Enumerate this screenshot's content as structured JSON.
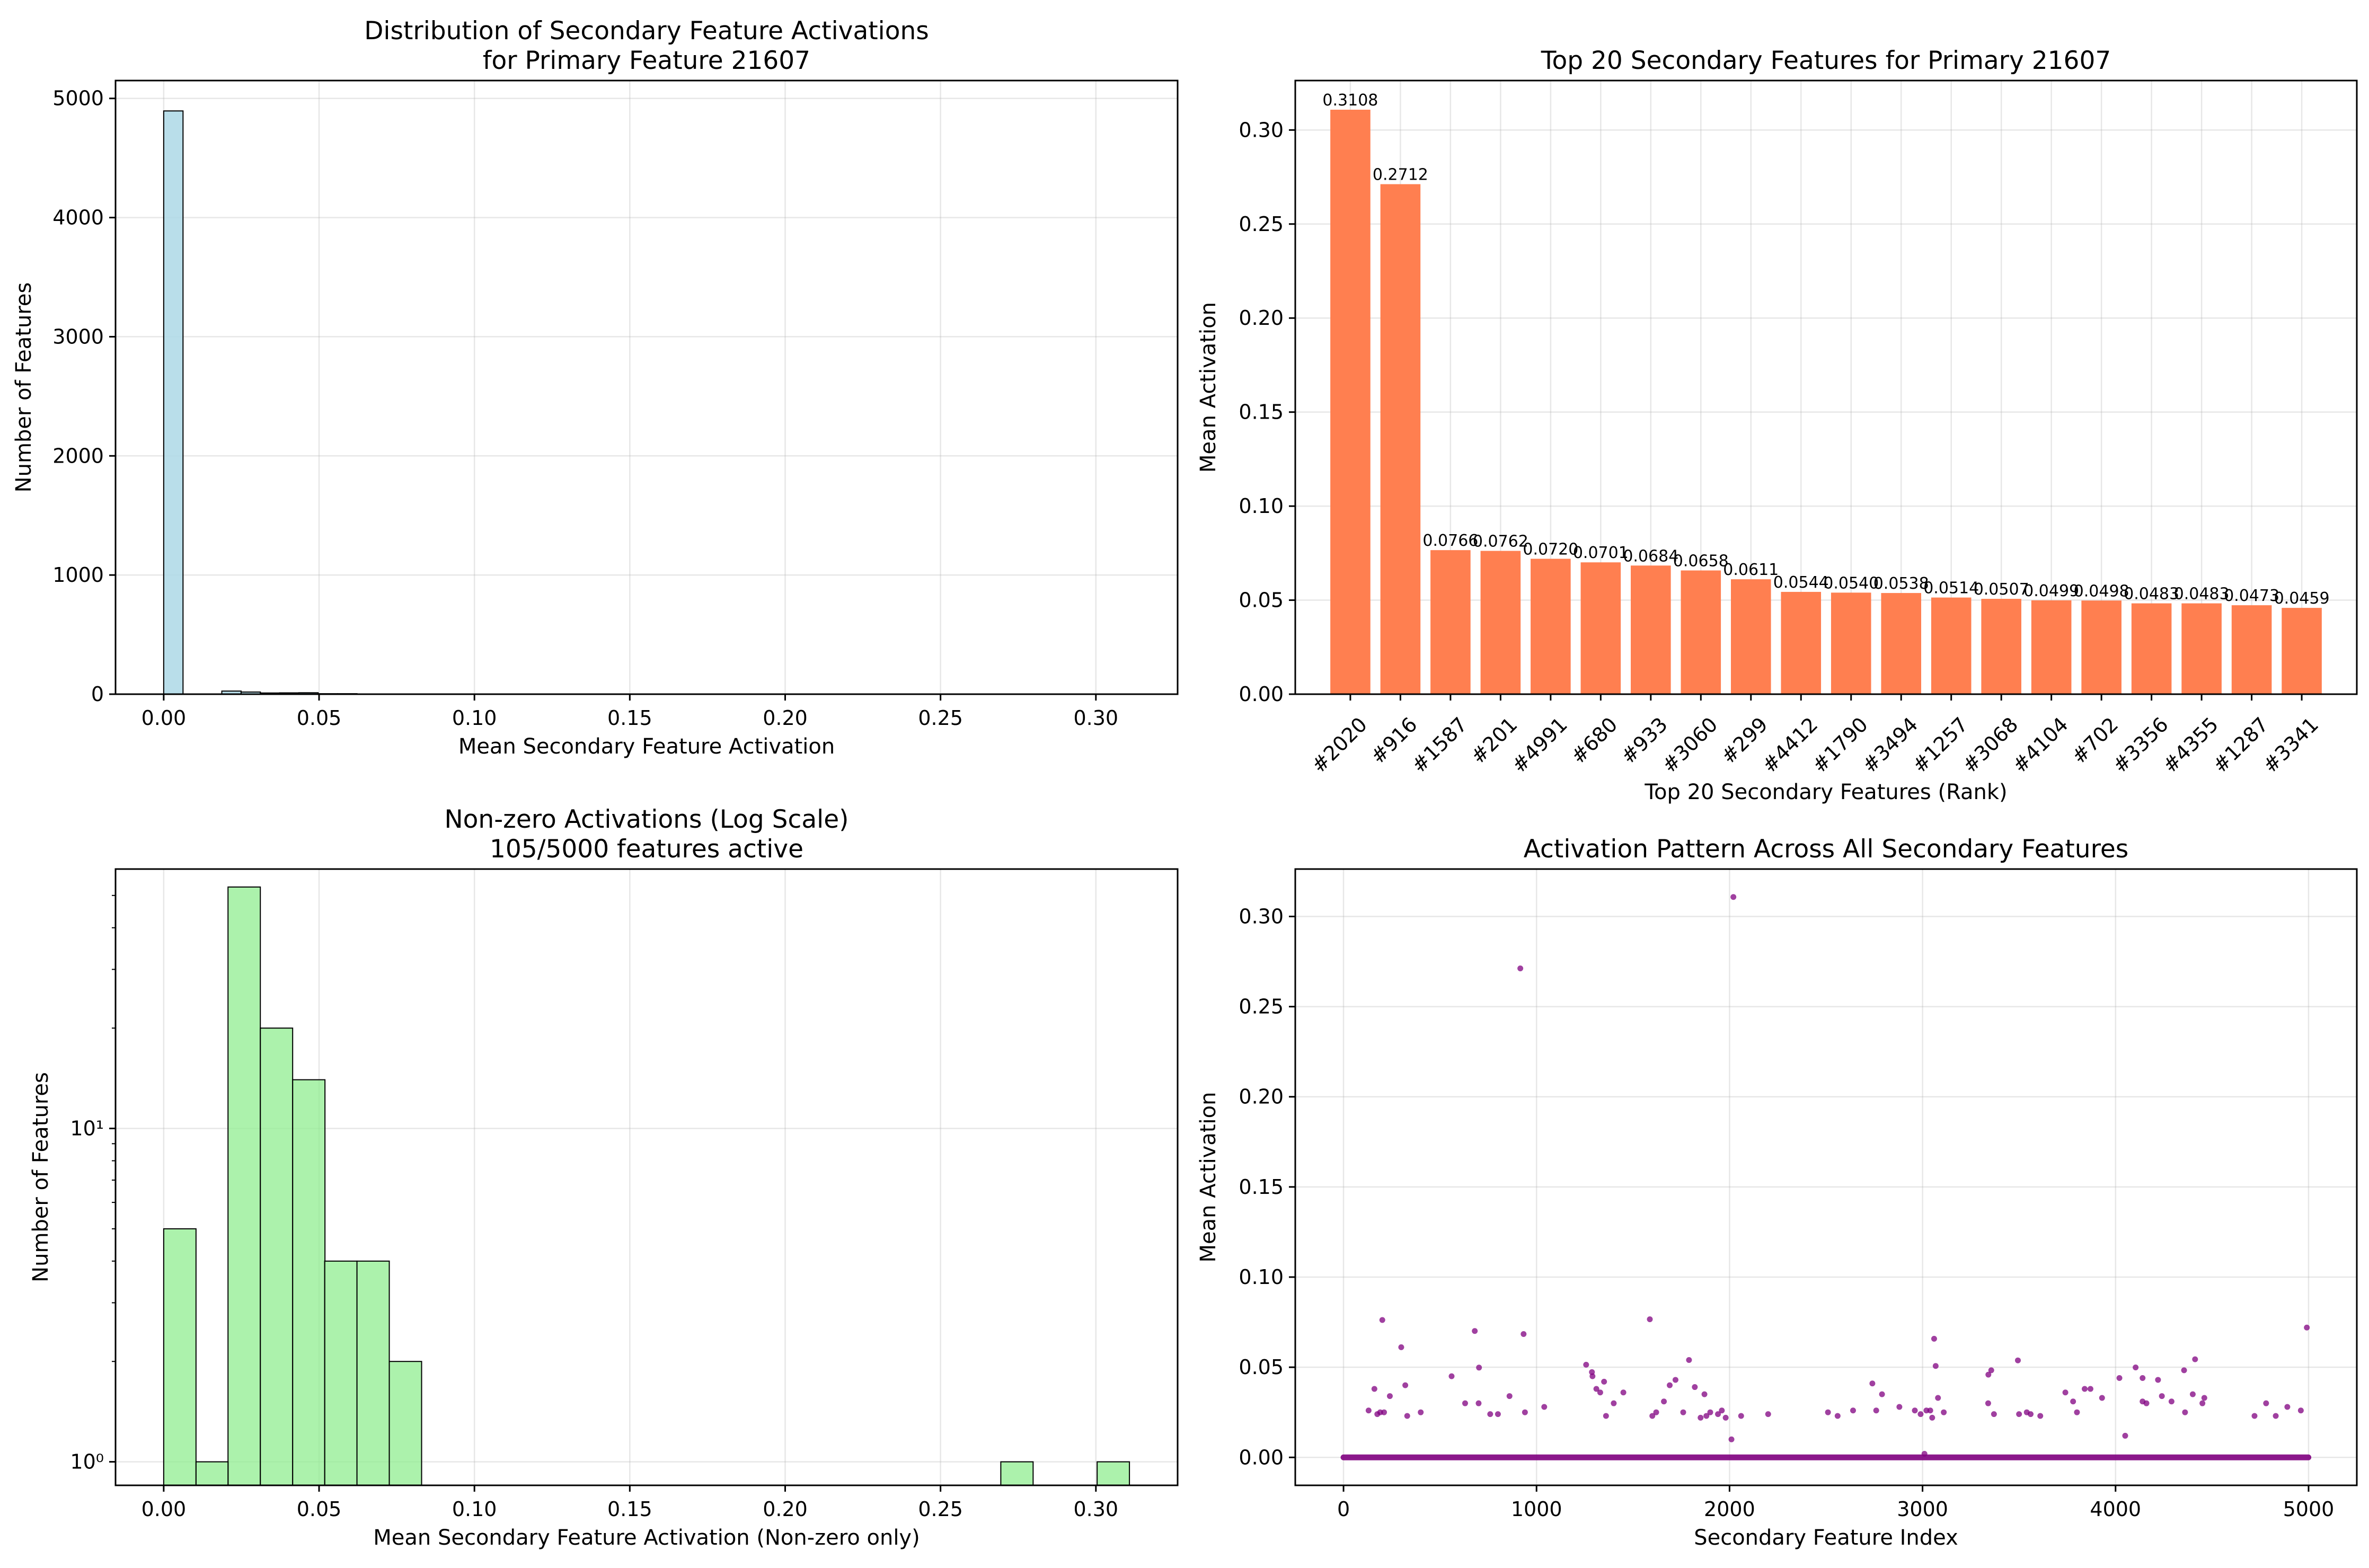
{
  "chart_data": [
    {
      "type": "bar",
      "subtype": "histogram",
      "title": [
        "Distribution of Secondary Feature Activations",
        "for Primary Feature 21607"
      ],
      "xlabel": "Mean Secondary Feature Activation",
      "ylabel": "Number of Features",
      "xlim": [
        -0.0155,
        0.3263
      ],
      "ylim": [
        0,
        5150
      ],
      "xticks": [
        0.0,
        0.05,
        0.1,
        0.15,
        0.2,
        0.25,
        0.3
      ],
      "xtick_labels": [
        "0.00",
        "0.05",
        "0.10",
        "0.15",
        "0.20",
        "0.25",
        "0.30"
      ],
      "yticks": [
        0,
        1000,
        2000,
        3000,
        4000,
        5000
      ],
      "ytick_labels": [
        "0",
        "1000",
        "2000",
        "3000",
        "4000",
        "5000"
      ],
      "bin_width": 0.00622,
      "bin_starts": [
        0.0,
        0.0187,
        0.0249,
        0.0311,
        0.0373,
        0.0435,
        0.0497,
        0.056,
        0.0622,
        0.0684,
        0.0746,
        0.2673,
        0.3046
      ],
      "counts": [
        4895,
        26,
        18,
        10,
        11,
        12,
        4,
        4,
        1,
        2,
        1,
        1,
        1
      ],
      "bar_color": "#add8e6",
      "edge_color": "#000000",
      "grid": true
    },
    {
      "type": "bar",
      "title": [
        "Top 20 Secondary Features for Primary 21607"
      ],
      "xlabel": "Top 20 Secondary Features (Rank)",
      "ylabel": "Mean Activation",
      "ylim": [
        0,
        0.3263
      ],
      "yticks": [
        0.0,
        0.05,
        0.1,
        0.15,
        0.2,
        0.25,
        0.3
      ],
      "ytick_labels": [
        "0.00",
        "0.05",
        "0.10",
        "0.15",
        "0.20",
        "0.25",
        "0.30"
      ],
      "categories": [
        "#2020",
        "#916",
        "#1587",
        "#201",
        "#4991",
        "#680",
        "#933",
        "#3060",
        "#299",
        "#4412",
        "#1790",
        "#3494",
        "#1257",
        "#3068",
        "#4104",
        "#702",
        "#3356",
        "#4355",
        "#1287",
        "#3341"
      ],
      "values": [
        0.3108,
        0.2712,
        0.0766,
        0.0762,
        0.072,
        0.0701,
        0.0684,
        0.0658,
        0.0611,
        0.0544,
        0.054,
        0.0538,
        0.0514,
        0.0507,
        0.0499,
        0.0498,
        0.0483,
        0.0483,
        0.0473,
        0.0459
      ],
      "value_labels": [
        "0.3108",
        "0.2712",
        "0.0766",
        "0.0762",
        "0.0720",
        "0.0701",
        "0.0684",
        "0.0658",
        "0.0611",
        "0.0544",
        "0.0540",
        "0.0538",
        "0.0514",
        "0.0507",
        "0.0499",
        "0.0498",
        "0.0483",
        "0.0483",
        "0.0473",
        "0.0459"
      ],
      "bar_color": "#ff7f50",
      "grid": true
    },
    {
      "type": "bar",
      "subtype": "histogram",
      "title": [
        "Non-zero Activations (Log Scale)",
        "105/5000 features active"
      ],
      "xlabel": "Mean Secondary Feature Activation (Non-zero only)",
      "ylabel": "Number of Features",
      "yscale": "log",
      "xlim": [
        -0.0155,
        0.3263
      ],
      "ylim": [
        0.85,
        60
      ],
      "xticks": [
        0.0,
        0.05,
        0.1,
        0.15,
        0.2,
        0.25,
        0.3
      ],
      "xtick_labels": [
        "0.00",
        "0.05",
        "0.10",
        "0.15",
        "0.20",
        "0.25",
        "0.30"
      ],
      "yticks": [
        1,
        10
      ],
      "ytick_labels": [
        "10⁰",
        "10¹"
      ],
      "bin_width": 0.0104,
      "bin_starts": [
        0.0,
        0.0104,
        0.0207,
        0.0311,
        0.0415,
        0.0518,
        0.0622,
        0.0726,
        0.2694,
        0.3004
      ],
      "counts": [
        5,
        1,
        53,
        20,
        14,
        4,
        4,
        2,
        1,
        1
      ],
      "bar_color": "#90ee90",
      "edge_color": "#000000",
      "grid": true
    },
    {
      "type": "scatter",
      "title": [
        "Activation Pattern Across All Secondary Features"
      ],
      "xlabel": "Secondary Feature Index",
      "ylabel": "Mean Activation",
      "xlim": [
        -250,
        5250
      ],
      "ylim": [
        -0.0155,
        0.3263
      ],
      "xticks": [
        0,
        1000,
        2000,
        3000,
        4000,
        5000
      ],
      "xtick_labels": [
        "0",
        "1000",
        "2000",
        "3000",
        "4000",
        "5000"
      ],
      "yticks": [
        0.0,
        0.05,
        0.1,
        0.15,
        0.2,
        0.25,
        0.3
      ],
      "ytick_labels": [
        "0.00",
        "0.05",
        "0.10",
        "0.15",
        "0.20",
        "0.25",
        "0.30"
      ],
      "baseline": {
        "x_from": 0,
        "x_to": 4999,
        "y": 0.0
      },
      "x": [
        2020,
        916,
        1587,
        201,
        4991,
        680,
        933,
        3060,
        299,
        4412,
        1790,
        3494,
        1257,
        3068,
        4104,
        702,
        3356,
        4355,
        1287,
        3341,
        130,
        160,
        175,
        190,
        210,
        240,
        320,
        330,
        400,
        560,
        630,
        700,
        760,
        800,
        860,
        940,
        1040,
        1290,
        1310,
        1330,
        1350,
        1360,
        1400,
        1450,
        1600,
        1620,
        1660,
        1690,
        1720,
        1760,
        1820,
        1850,
        1870,
        1880,
        1900,
        1940,
        1960,
        1980,
        2010,
        2200,
        2510,
        2560,
        2640,
        2740,
        2760,
        2790,
        2960,
        2990,
        3020,
        3040,
        3050,
        3080,
        3110,
        3340,
        3370,
        3500,
        3540,
        3560,
        3610,
        3740,
        3780,
        3800,
        3840,
        3870,
        3930,
        4020,
        4050,
        4140,
        4160,
        4220,
        4240,
        4290,
        4360,
        4400,
        4450,
        4720,
        4780,
        4830,
        4890,
        4960,
        4140,
        4460,
        2880,
        3010,
        2060
      ],
      "y": [
        0.3108,
        0.2712,
        0.0766,
        0.0762,
        0.072,
        0.0701,
        0.0684,
        0.0658,
        0.0611,
        0.0544,
        0.054,
        0.0538,
        0.0514,
        0.0507,
        0.0499,
        0.0498,
        0.0483,
        0.0483,
        0.0473,
        0.0459,
        0.026,
        0.038,
        0.024,
        0.025,
        0.025,
        0.034,
        0.04,
        0.023,
        0.025,
        0.045,
        0.03,
        0.03,
        0.024,
        0.024,
        0.034,
        0.025,
        0.028,
        0.045,
        0.038,
        0.036,
        0.042,
        0.023,
        0.03,
        0.036,
        0.023,
        0.025,
        0.031,
        0.04,
        0.043,
        0.025,
        0.039,
        0.022,
        0.035,
        0.023,
        0.025,
        0.024,
        0.026,
        0.022,
        0.01,
        0.024,
        0.025,
        0.023,
        0.026,
        0.041,
        0.026,
        0.035,
        0.026,
        0.024,
        0.026,
        0.026,
        0.022,
        0.033,
        0.025,
        0.03,
        0.024,
        0.024,
        0.025,
        0.024,
        0.023,
        0.036,
        0.031,
        0.025,
        0.038,
        0.038,
        0.033,
        0.044,
        0.012,
        0.044,
        0.03,
        0.043,
        0.034,
        0.031,
        0.025,
        0.035,
        0.03,
        0.023,
        0.03,
        0.023,
        0.028,
        0.026,
        0.031,
        0.033,
        0.028,
        0.002,
        0.023
      ],
      "point_color": "#800080",
      "grid": true
    }
  ]
}
